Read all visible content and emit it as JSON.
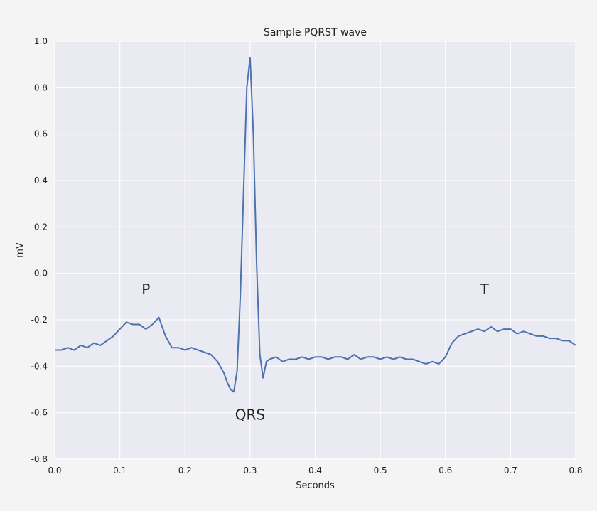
{
  "chart_data": {
    "type": "line",
    "title": "Sample PQRST wave",
    "xlabel": "Seconds",
    "ylabel": "mV",
    "xlim": [
      0.0,
      0.8
    ],
    "ylim": [
      -0.8,
      1.0
    ],
    "xticks": [
      "0.0",
      "0.1",
      "0.2",
      "0.3",
      "0.4",
      "0.5",
      "0.6",
      "0.7",
      "0.8"
    ],
    "yticks": [
      "1.0",
      "0.8",
      "0.6",
      "0.4",
      "0.2",
      "0.0",
      "-0.2",
      "-0.4",
      "-0.6",
      "-0.8"
    ],
    "grid": true,
    "colors": {
      "plot_bg": "#eaeaf2",
      "line": "#4c72b0",
      "grid": "#ffffff"
    },
    "annotations": [
      {
        "text": "P",
        "x": 0.14,
        "y": -0.09
      },
      {
        "text": "QRS",
        "x": 0.3,
        "y": -0.63
      },
      {
        "text": "T",
        "x": 0.66,
        "y": -0.09
      }
    ],
    "series": [
      {
        "x": [
          0.0,
          0.01,
          0.02,
          0.03,
          0.04,
          0.05,
          0.06,
          0.07,
          0.08,
          0.09,
          0.1,
          0.11,
          0.12,
          0.13,
          0.14,
          0.15,
          0.16,
          0.17,
          0.18,
          0.19,
          0.2,
          0.21,
          0.22,
          0.23,
          0.24,
          0.25,
          0.26,
          0.265,
          0.27,
          0.275,
          0.28,
          0.285,
          0.29,
          0.295,
          0.3,
          0.305,
          0.31,
          0.315,
          0.32,
          0.325,
          0.33,
          0.34,
          0.35,
          0.36,
          0.37,
          0.38,
          0.39,
          0.4,
          0.41,
          0.42,
          0.43,
          0.44,
          0.45,
          0.46,
          0.47,
          0.48,
          0.49,
          0.5,
          0.51,
          0.52,
          0.53,
          0.54,
          0.55,
          0.56,
          0.57,
          0.58,
          0.59,
          0.6,
          0.61,
          0.62,
          0.63,
          0.64,
          0.65,
          0.66,
          0.67,
          0.68,
          0.69,
          0.7,
          0.71,
          0.72,
          0.73,
          0.74,
          0.75,
          0.76,
          0.77,
          0.78,
          0.79,
          0.8
        ],
        "values": [
          -0.33,
          -0.33,
          -0.32,
          -0.33,
          -0.31,
          -0.32,
          -0.3,
          -0.31,
          -0.29,
          -0.27,
          -0.24,
          -0.21,
          -0.22,
          -0.22,
          -0.24,
          -0.22,
          -0.19,
          -0.27,
          -0.32,
          -0.32,
          -0.33,
          -0.32,
          -0.33,
          -0.34,
          -0.35,
          -0.38,
          -0.43,
          -0.47,
          -0.5,
          -0.51,
          -0.42,
          -0.1,
          0.35,
          0.8,
          0.93,
          0.6,
          0.05,
          -0.35,
          -0.45,
          -0.38,
          -0.37,
          -0.36,
          -0.38,
          -0.37,
          -0.37,
          -0.36,
          -0.37,
          -0.36,
          -0.36,
          -0.37,
          -0.36,
          -0.36,
          -0.37,
          -0.35,
          -0.37,
          -0.36,
          -0.36,
          -0.37,
          -0.36,
          -0.37,
          -0.36,
          -0.37,
          -0.37,
          -0.38,
          -0.39,
          -0.38,
          -0.39,
          -0.36,
          -0.3,
          -0.27,
          -0.26,
          -0.25,
          -0.24,
          -0.25,
          -0.23,
          -0.25,
          -0.24,
          -0.24,
          -0.26,
          -0.25,
          -0.26,
          -0.27,
          -0.27,
          -0.28,
          -0.28,
          -0.29,
          -0.29,
          -0.31
        ]
      }
    ]
  }
}
